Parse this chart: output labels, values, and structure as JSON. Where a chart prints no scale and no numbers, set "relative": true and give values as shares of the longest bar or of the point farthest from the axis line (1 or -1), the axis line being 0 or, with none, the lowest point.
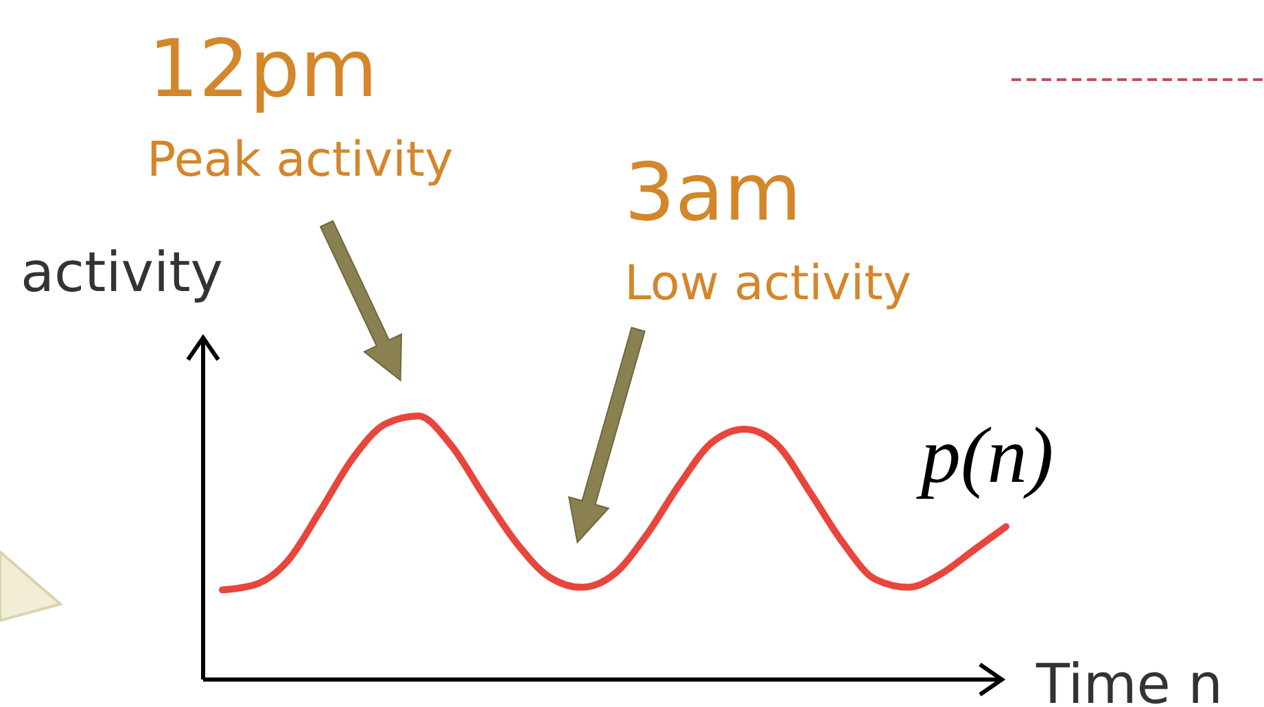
{
  "chart_data": {
    "type": "line",
    "relative": true,
    "xlabel": "Time n",
    "ylabel": "activity",
    "categories": [
      null,
      null,
      null,
      null,
      null,
      null,
      null,
      null,
      null,
      null,
      null,
      null,
      null,
      null,
      null,
      null,
      null,
      null,
      null,
      null,
      null,
      null,
      null,
      null,
      null
    ],
    "series": [
      {
        "name": "p(n)",
        "color": "#e8453c",
        "values": [
          0.34,
          0.36,
          0.45,
          0.64,
          0.84,
          0.97,
          1,
          0.89,
          0.7,
          0.52,
          0.39,
          0.35,
          0.4,
          0.55,
          0.74,
          0.9,
          0.95,
          0.89,
          0.71,
          0.52,
          0.38,
          0.35,
          0.4,
          0.49,
          0.58
        ]
      }
    ],
    "annotations": [
      "12pm",
      "Peak activity",
      "3am",
      "Low activity"
    ]
  }
}
